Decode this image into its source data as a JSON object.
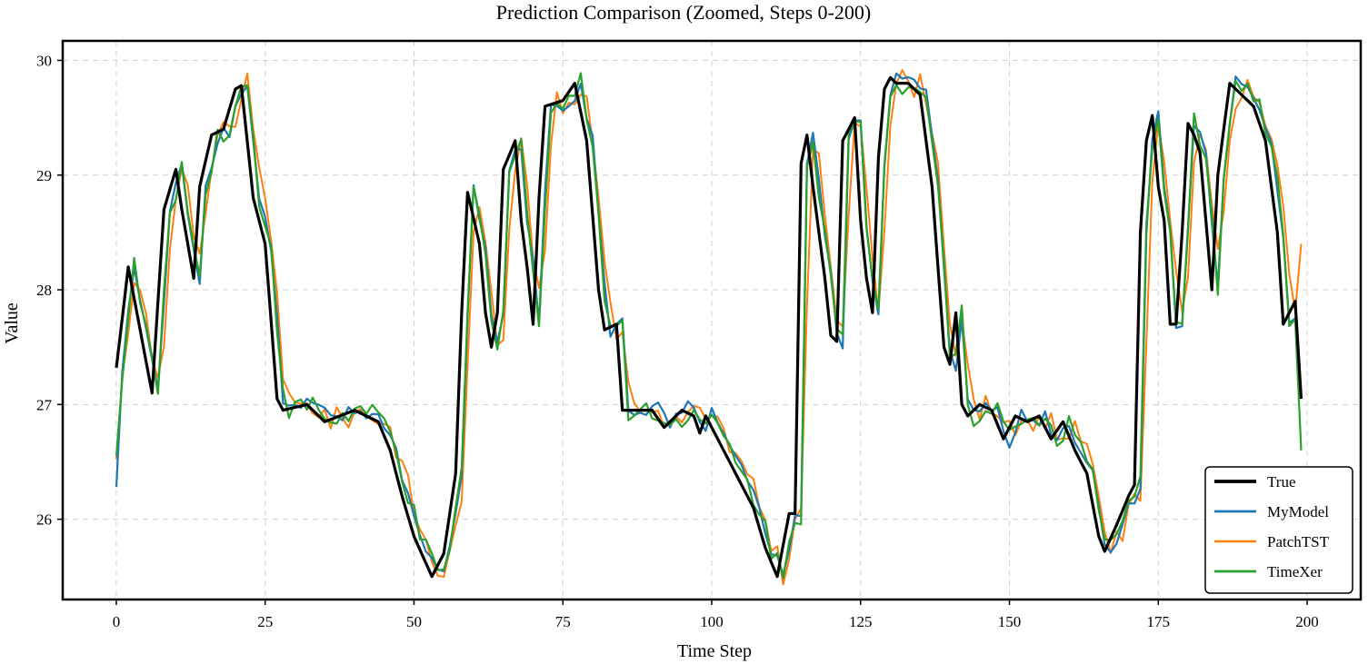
{
  "chart_data": {
    "type": "line",
    "title": "Prediction Comparison (Zoomed, Steps 0-200)",
    "xlabel": "Time Step",
    "ylabel": "Value",
    "xlim": [
      -9,
      209
    ],
    "ylim": [
      25.3,
      30.17
    ],
    "xticks": [
      0,
      25,
      50,
      75,
      100,
      125,
      150,
      175,
      200
    ],
    "yticks": [
      26,
      27,
      28,
      29,
      30
    ],
    "grid": true,
    "legend_position": "bottom-right",
    "keyframes": [
      [
        0,
        27.3
      ],
      [
        2,
        28.2
      ],
      [
        6,
        27.1
      ],
      [
        8,
        28.7
      ],
      [
        10,
        29.05
      ],
      [
        11,
        28.7
      ],
      [
        13,
        28.1
      ],
      [
        14,
        28.9
      ],
      [
        16,
        29.35
      ],
      [
        18,
        29.4
      ],
      [
        20,
        29.75
      ],
      [
        21,
        29.78
      ],
      [
        23,
        28.8
      ],
      [
        25,
        28.4
      ],
      [
        27,
        27.05
      ],
      [
        28,
        26.95
      ],
      [
        32,
        27.0
      ],
      [
        35,
        26.85
      ],
      [
        40,
        26.95
      ],
      [
        44,
        26.85
      ],
      [
        46,
        26.6
      ],
      [
        48,
        26.2
      ],
      [
        50,
        25.85
      ],
      [
        53,
        25.5
      ],
      [
        55,
        25.7
      ],
      [
        57,
        26.4
      ],
      [
        58,
        27.8
      ],
      [
        59,
        28.85
      ],
      [
        61,
        28.4
      ],
      [
        62,
        27.8
      ],
      [
        63,
        27.5
      ],
      [
        64,
        27.8
      ],
      [
        65,
        29.05
      ],
      [
        67,
        29.3
      ],
      [
        68,
        28.6
      ],
      [
        69,
        28.2
      ],
      [
        70,
        27.7
      ],
      [
        71,
        28.8
      ],
      [
        72,
        29.6
      ],
      [
        75,
        29.65
      ],
      [
        77,
        29.8
      ],
      [
        79,
        29.3
      ],
      [
        81,
        28.0
      ],
      [
        82,
        27.65
      ],
      [
        84,
        27.7
      ],
      [
        85,
        26.95
      ],
      [
        88,
        26.95
      ],
      [
        90,
        26.95
      ],
      [
        92,
        26.8
      ],
      [
        95,
        26.95
      ],
      [
        97,
        26.9
      ],
      [
        98,
        26.75
      ],
      [
        99,
        26.9
      ],
      [
        101,
        26.7
      ],
      [
        103,
        26.5
      ],
      [
        105,
        26.3
      ],
      [
        107,
        26.1
      ],
      [
        109,
        25.75
      ],
      [
        111,
        25.5
      ],
      [
        113,
        26.05
      ],
      [
        114,
        26.05
      ],
      [
        115,
        29.1
      ],
      [
        116,
        29.35
      ],
      [
        117,
        28.9
      ],
      [
        119,
        28.1
      ],
      [
        120,
        27.6
      ],
      [
        121,
        27.55
      ],
      [
        122,
        29.3
      ],
      [
        124,
        29.5
      ],
      [
        125,
        28.6
      ],
      [
        126,
        28.1
      ],
      [
        127,
        27.8
      ],
      [
        128,
        29.15
      ],
      [
        129,
        29.75
      ],
      [
        130,
        29.85
      ],
      [
        131,
        29.8
      ],
      [
        133,
        29.8
      ],
      [
        135,
        29.7
      ],
      [
        137,
        28.9
      ],
      [
        138,
        28.2
      ],
      [
        139,
        27.5
      ],
      [
        140,
        27.35
      ],
      [
        141,
        27.8
      ],
      [
        142,
        27.0
      ],
      [
        143,
        26.9
      ],
      [
        145,
        27.0
      ],
      [
        147,
        26.95
      ],
      [
        149,
        26.7
      ],
      [
        151,
        26.9
      ],
      [
        153,
        26.85
      ],
      [
        155,
        26.9
      ],
      [
        157,
        26.7
      ],
      [
        159,
        26.85
      ],
      [
        161,
        26.6
      ],
      [
        163,
        26.4
      ],
      [
        165,
        25.85
      ],
      [
        166,
        25.72
      ],
      [
        168,
        25.95
      ],
      [
        170,
        26.2
      ],
      [
        171,
        26.3
      ],
      [
        172,
        28.5
      ],
      [
        173,
        29.3
      ],
      [
        174,
        29.52
      ],
      [
        175,
        28.9
      ],
      [
        176,
        28.6
      ],
      [
        177,
        27.7
      ],
      [
        178,
        27.7
      ],
      [
        179,
        28.5
      ],
      [
        180,
        29.45
      ],
      [
        181,
        29.35
      ],
      [
        182,
        29.2
      ],
      [
        183,
        28.6
      ],
      [
        184,
        28.0
      ],
      [
        185,
        29.0
      ],
      [
        187,
        29.8
      ],
      [
        189,
        29.7
      ],
      [
        191,
        29.6
      ],
      [
        193,
        29.3
      ],
      [
        195,
        28.5
      ],
      [
        196,
        27.7
      ],
      [
        197,
        27.8
      ],
      [
        198,
        27.9
      ],
      [
        199,
        27.05
      ]
    ],
    "series": [
      {
        "name": "True",
        "color": "#000000",
        "width": 3.2,
        "shift": 0,
        "amp": 0.0,
        "seed": 0,
        "start": 27.32,
        "end": 27.05
      },
      {
        "name": "MyModel",
        "color": "#1f77b4",
        "width": 2.2,
        "shift": 1,
        "amp": 0.08,
        "seed": 1,
        "start": 26.28,
        "end": 27.05
      },
      {
        "name": "PatchTST",
        "color": "#ff7f0e",
        "width": 2.0,
        "shift": 1.4,
        "amp": 0.12,
        "seed": 2,
        "start": 26.52,
        "end": 28.4
      },
      {
        "name": "TimeXer",
        "color": "#2ca02c",
        "width": 2.2,
        "shift": 1,
        "amp": 0.1,
        "seed": 3,
        "start": 26.55,
        "end": 26.6
      }
    ]
  }
}
